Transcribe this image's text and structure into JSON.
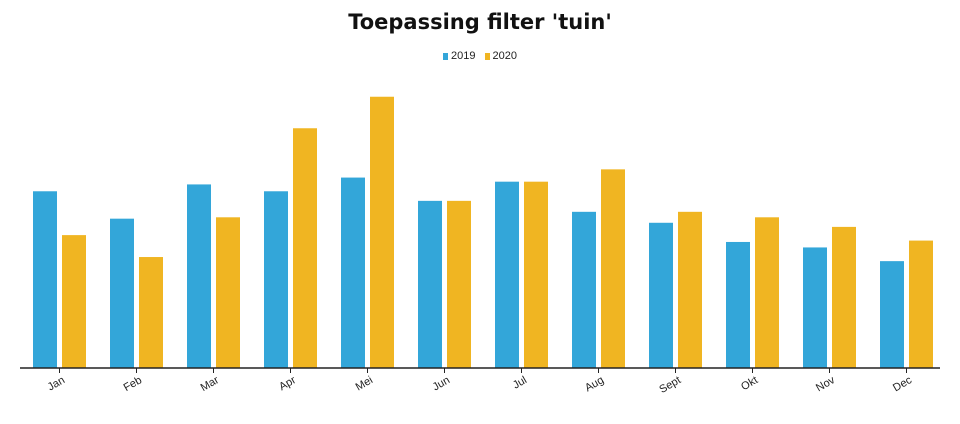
{
  "chart_data": {
    "type": "bar",
    "title": "Toepassing filter 'tuin'",
    "xlabel": "",
    "ylabel": "",
    "ylim": [
      0,
      100
    ],
    "grid": false,
    "legend_position": "top-center",
    "categories": [
      "Jan",
      "Feb",
      "Mar",
      "Apr",
      "Mei",
      "Jun",
      "Jul",
      "Aug",
      "Sept",
      "Okt",
      "Nov",
      "Dec"
    ],
    "series": [
      {
        "name": "2019",
        "color": "#33a6d9",
        "values": [
          64.5,
          54.5,
          67.0,
          64.5,
          69.5,
          61.0,
          68.0,
          57.0,
          53.0,
          46.0,
          44.0,
          39.0
        ]
      },
      {
        "name": "2020",
        "color": "#f0b522",
        "values": [
          48.5,
          40.5,
          55.0,
          87.5,
          99.0,
          61.0,
          68.0,
          72.5,
          57.0,
          55.0,
          51.5,
          46.5
        ]
      }
    ]
  }
}
